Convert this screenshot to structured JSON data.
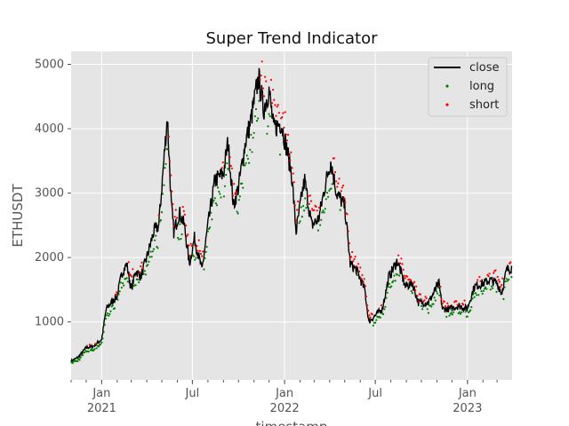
{
  "chart_data": {
    "type": "line",
    "title": "Super Trend Indicator",
    "xlabel": "timestamp",
    "ylabel": "ETHUSDT",
    "xlim": [
      "2020-11-01",
      "2023-03-31"
    ],
    "ylim": [
      100,
      5200
    ],
    "grid": true,
    "legend_position": "top-right",
    "x_tick_labels": [
      {
        "date": "2021-01-01",
        "label": "Jan",
        "sublabel": "2021"
      },
      {
        "date": "2021-07-01",
        "label": "Jul",
        "sublabel": ""
      },
      {
        "date": "2022-01-01",
        "label": "Jan",
        "sublabel": "2022"
      },
      {
        "date": "2022-07-01",
        "label": "Jul",
        "sublabel": ""
      },
      {
        "date": "2023-01-01",
        "label": "Jan",
        "sublabel": "2023"
      }
    ],
    "y_ticks": [
      1000,
      2000,
      3000,
      4000,
      5000
    ],
    "y_tick_labels": [
      "1000",
      "2000",
      "3000",
      "4000",
      "5000"
    ],
    "legend": [
      "close",
      "long",
      "short"
    ],
    "colors": {
      "close": "#000000",
      "long": "#008000",
      "short": "#ff0000",
      "plot_background": "#e5e5e5",
      "grid": "#ffffff"
    },
    "series": [
      {
        "name": "close",
        "points": [
          [
            "2020-11-01",
            390
          ],
          [
            "2020-11-15",
            450
          ],
          [
            "2020-12-01",
            600
          ],
          [
            "2020-12-15",
            620
          ],
          [
            "2021-01-01",
            730
          ],
          [
            "2021-01-10",
            1200
          ],
          [
            "2021-01-20",
            1300
          ],
          [
            "2021-02-01",
            1400
          ],
          [
            "2021-02-10",
            1750
          ],
          [
            "2021-02-20",
            1900
          ],
          [
            "2021-03-01",
            1500
          ],
          [
            "2021-03-10",
            1800
          ],
          [
            "2021-03-20",
            1700
          ],
          [
            "2021-04-01",
            2000
          ],
          [
            "2021-04-15",
            2400
          ],
          [
            "2021-04-25",
            2500
          ],
          [
            "2021-05-05",
            3500
          ],
          [
            "2021-05-12",
            4200
          ],
          [
            "2021-05-20",
            2800
          ],
          [
            "2021-05-25",
            2400
          ],
          [
            "2021-06-05",
            2700
          ],
          [
            "2021-06-15",
            2500
          ],
          [
            "2021-06-25",
            1900
          ],
          [
            "2021-07-05",
            2300
          ],
          [
            "2021-07-20",
            1800
          ],
          [
            "2021-08-01",
            2500
          ],
          [
            "2021-08-15",
            3200
          ],
          [
            "2021-09-01",
            3300
          ],
          [
            "2021-09-10",
            3800
          ],
          [
            "2021-09-21",
            2800
          ],
          [
            "2021-10-01",
            3100
          ],
          [
            "2021-10-15",
            3800
          ],
          [
            "2021-10-25",
            4100
          ],
          [
            "2021-11-10",
            4800
          ],
          [
            "2021-11-20",
            4300
          ],
          [
            "2021-12-01",
            4600
          ],
          [
            "2021-12-10",
            4000
          ],
          [
            "2021-12-25",
            4100
          ],
          [
            "2022-01-05",
            3700
          ],
          [
            "2022-01-15",
            3300
          ],
          [
            "2022-01-24",
            2400
          ],
          [
            "2022-02-05",
            3000
          ],
          [
            "2022-02-10",
            3200
          ],
          [
            "2022-02-24",
            2500
          ],
          [
            "2022-03-10",
            2600
          ],
          [
            "2022-03-25",
            3200
          ],
          [
            "2022-04-03",
            3500
          ],
          [
            "2022-04-15",
            3000
          ],
          [
            "2022-05-01",
            2800
          ],
          [
            "2022-05-12",
            1900
          ],
          [
            "2022-05-25",
            1800
          ],
          [
            "2022-06-10",
            1500
          ],
          [
            "2022-06-18",
            1000
          ],
          [
            "2022-07-01",
            1100
          ],
          [
            "2022-07-15",
            1200
          ],
          [
            "2022-07-28",
            1700
          ],
          [
            "2022-08-14",
            1950
          ],
          [
            "2022-08-30",
            1550
          ],
          [
            "2022-09-13",
            1600
          ],
          [
            "2022-09-25",
            1300
          ],
          [
            "2022-10-15",
            1300
          ],
          [
            "2022-11-05",
            1600
          ],
          [
            "2022-11-12",
            1200
          ],
          [
            "2022-11-25",
            1200
          ],
          [
            "2022-12-15",
            1250
          ],
          [
            "2022-12-31",
            1200
          ],
          [
            "2023-01-15",
            1550
          ],
          [
            "2023-02-01",
            1600
          ],
          [
            "2023-02-15",
            1650
          ],
          [
            "2023-03-01",
            1600
          ],
          [
            "2023-03-10",
            1450
          ],
          [
            "2023-03-20",
            1800
          ],
          [
            "2023-03-31",
            1850
          ]
        ]
      },
      {
        "name": "long",
        "values_note_hidden": false
      },
      {
        "name": "short",
        "values_note_hidden": false
      }
    ]
  }
}
